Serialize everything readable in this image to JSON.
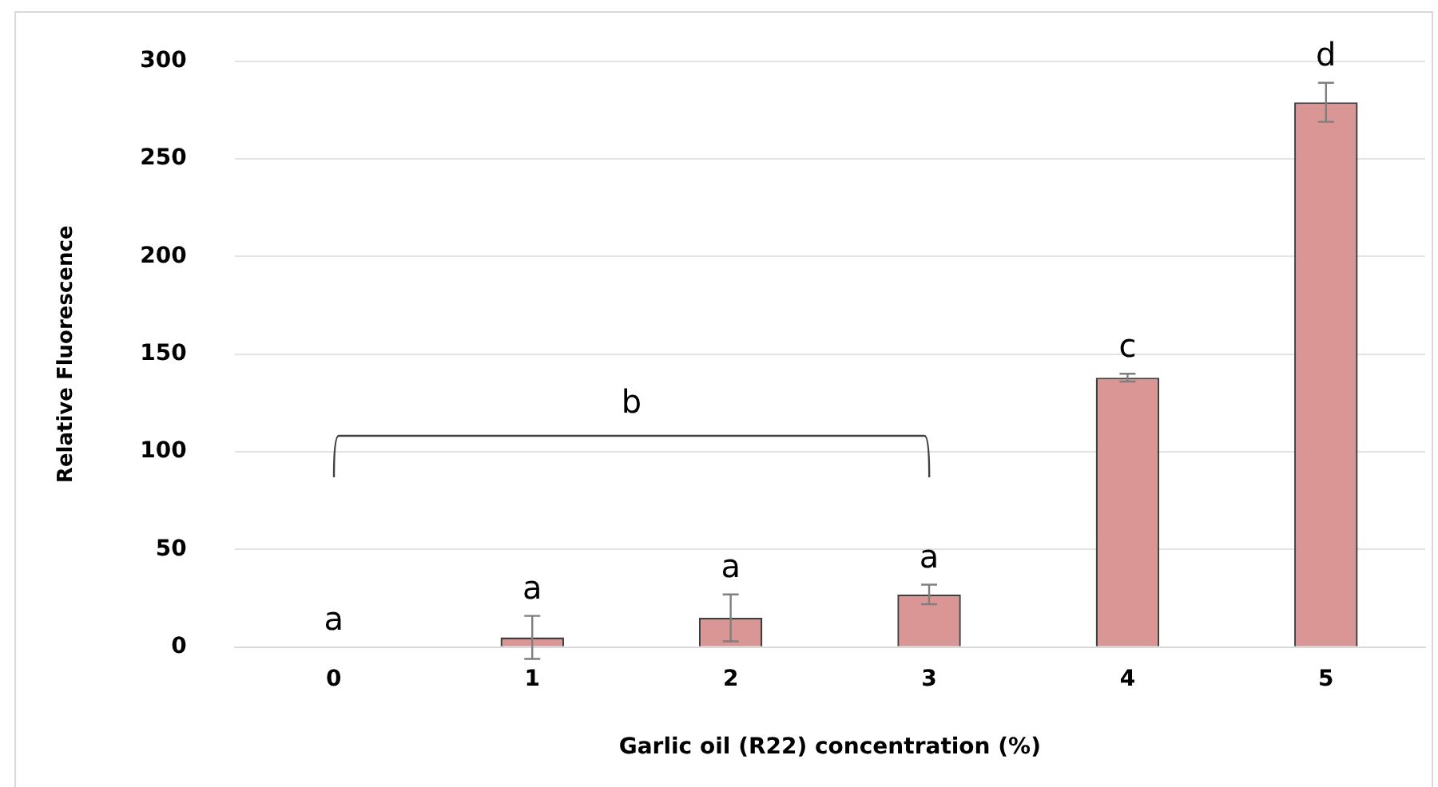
{
  "chart_data": {
    "type": "bar",
    "xlabel": "Garlic oil (R22) concentration (%)",
    "ylabel": "Relative Fluorescence",
    "categories": [
      "0",
      "1",
      "2",
      "3",
      "4",
      "5"
    ],
    "values": [
      0,
      5,
      15,
      27,
      138,
      279
    ],
    "errors": [
      null,
      11,
      12,
      5,
      2,
      10
    ],
    "color": "#da9694",
    "ylim": [
      0,
      300
    ],
    "yticks": [
      0,
      50,
      100,
      150,
      200,
      250,
      300
    ],
    "grid": "y",
    "legend": false,
    "annotations": [
      {
        "text": "a",
        "x": "0",
        "y": 0
      },
      {
        "text": "a",
        "x": "1",
        "y": 16
      },
      {
        "text": "a",
        "x": "2",
        "y": 27
      },
      {
        "text": "a",
        "x": "3",
        "y": 32
      },
      {
        "text": "c",
        "x": "4",
        "y": 140
      },
      {
        "text": "d",
        "x": "5",
        "y": 289
      },
      "b"
    ]
  }
}
